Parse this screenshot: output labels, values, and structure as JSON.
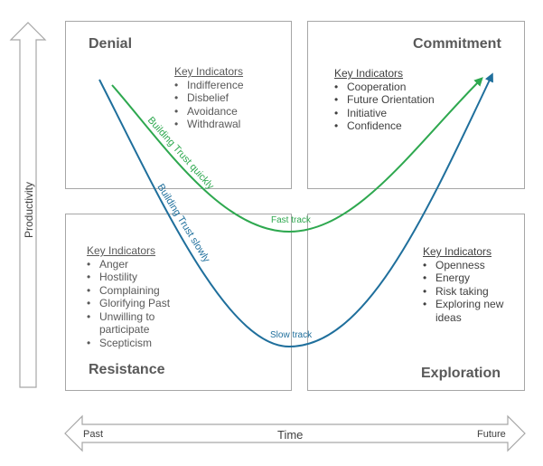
{
  "axes": {
    "y_label": "Productivity",
    "x_label": "Time",
    "x_start": "Past",
    "x_end": "Future"
  },
  "quadrants": {
    "denial": {
      "title": "Denial",
      "indicators_heading": "Key Indicators",
      "indicators": [
        "Indifference",
        "Disbelief",
        "Avoidance",
        "Withdrawal"
      ]
    },
    "commitment": {
      "title": "Commitment",
      "indicators_heading": "Key Indicators",
      "indicators": [
        "Cooperation",
        "Future Orientation",
        "Initiative",
        "Confidence"
      ]
    },
    "resistance": {
      "title": "Resistance",
      "indicators_heading": "Key Indicators",
      "indicators": [
        "Anger",
        "Hostility",
        "Complaining",
        "Glorifying Past",
        "Unwilling to participate",
        "Scepticism"
      ]
    },
    "exploration": {
      "title": "Exploration",
      "indicators_heading": "Key Indicators",
      "indicators": [
        "Openness",
        "Energy",
        "Risk taking",
        "Exploring new ideas"
      ]
    }
  },
  "curves": {
    "fast": {
      "label": "Building Trust quickly",
      "point_label": "Fast track",
      "color": "#2ea84f"
    },
    "slow": {
      "label": "Building Trust slowly",
      "point_label": "Slow track",
      "color": "#1f6f9c"
    }
  }
}
